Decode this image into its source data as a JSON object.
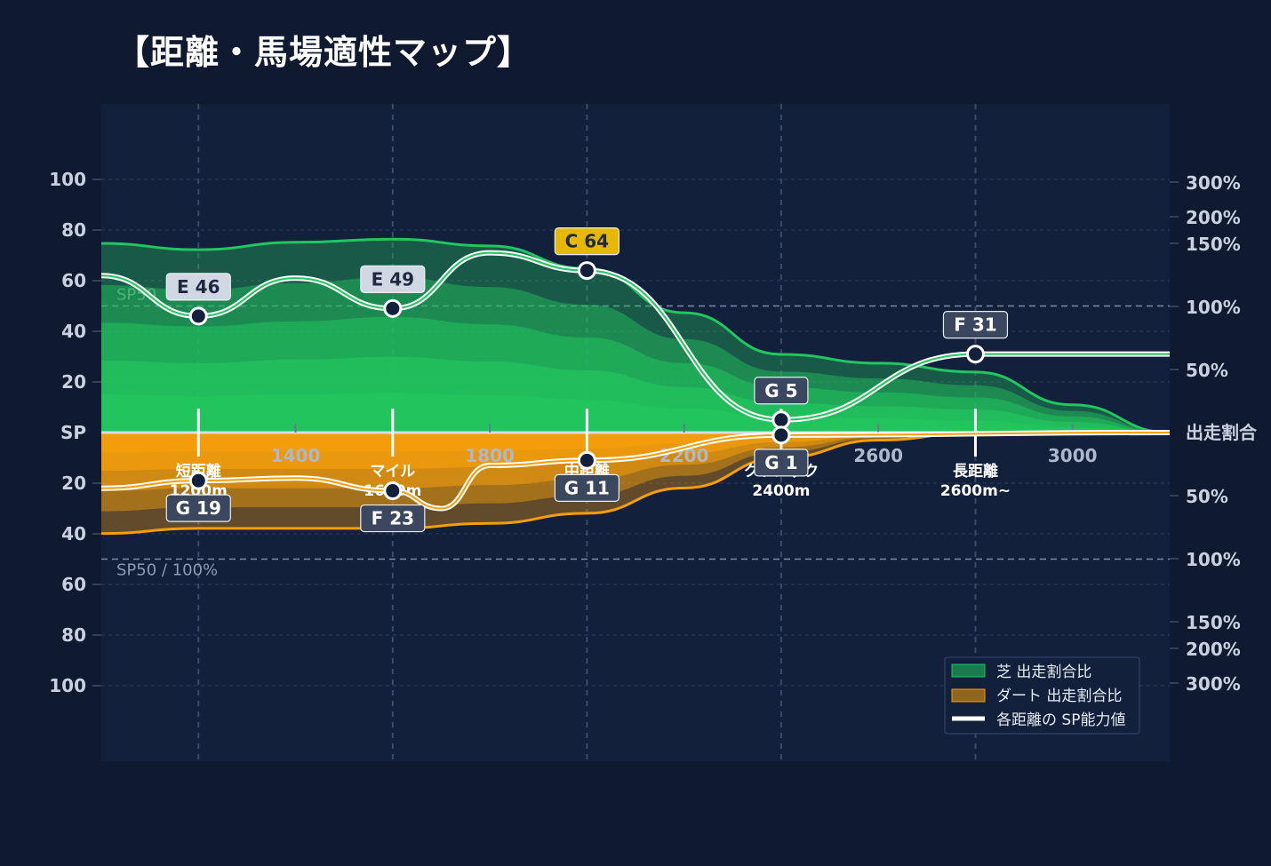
{
  "title": "【距離・馬場適性マップ】",
  "colors": {
    "background": "#0f1930",
    "plot_bg": "#13203b",
    "turf": "#22c55e",
    "dirt": "#f59e0b",
    "grid": "#2e3d5c"
  },
  "chart_data": {
    "type": "area",
    "x_range": [
      1000,
      3200
    ],
    "x_ticks": [
      "1400",
      "1800",
      "2200",
      "2600",
      "3000"
    ],
    "x_tick_values": [
      1400,
      1800,
      2200,
      2600,
      3000
    ],
    "left_axis": {
      "center_label": "SP",
      "labels": [
        "100",
        "80",
        "60",
        "40",
        "20"
      ],
      "values": [
        100,
        80,
        60,
        40,
        20
      ],
      "range": [
        0,
        100
      ]
    },
    "right_axis": {
      "center_label": "出走割合",
      "labels": [
        "300%",
        "200%",
        "150%",
        "100%",
        "50%"
      ],
      "values": [
        300,
        200,
        150,
        100,
        50
      ]
    },
    "reference_line": {
      "value": 50,
      "upper_label": "SP50",
      "lower_label": "SP50 / 100%"
    },
    "distance_categories": [
      {
        "name": "短距離",
        "range": "1200m",
        "x": 1200
      },
      {
        "name": "マイル",
        "range": "1600m",
        "x": 1600
      },
      {
        "name": "中距離",
        "range": "",
        "x": 2000
      },
      {
        "name": "クラシック",
        "range": "2400m",
        "x": 2400
      },
      {
        "name": "長距離",
        "range": "2600m~",
        "x": 2800
      }
    ],
    "series": [
      {
        "name": "芝 出走割合比",
        "side": "upper",
        "x": [
          1000,
          1200,
          1400,
          1600,
          1800,
          2000,
          2200,
          2400,
          2600,
          2800,
          3000,
          3200
        ],
        "values": [
          150,
          145,
          152,
          158,
          148,
          130,
          95,
          62,
          55,
          48,
          22,
          0
        ]
      },
      {
        "name": "ダート 出走割合比",
        "side": "lower",
        "x": [
          1000,
          1200,
          1400,
          1600,
          1800,
          2000,
          2200,
          2400,
          2600,
          2800,
          3000,
          3200
        ],
        "values": [
          80,
          76,
          76,
          76,
          72,
          64,
          44,
          20,
          6,
          0,
          0,
          0
        ]
      },
      {
        "name": "各距離の SP能力値",
        "turf_points": [
          {
            "x": 1000,
            "y": 62
          },
          {
            "x": 1200,
            "y": 46,
            "grade": "E 46"
          },
          {
            "x": 1400,
            "y": 61
          },
          {
            "x": 1600,
            "y": 49,
            "grade": "E 49"
          },
          {
            "x": 1800,
            "y": 71
          },
          {
            "x": 2000,
            "y": 64,
            "grade": "C 64"
          },
          {
            "x": 2400,
            "y": 5,
            "grade": "G 5"
          },
          {
            "x": 2800,
            "y": 31,
            "grade": "F 31"
          },
          {
            "x": 3200,
            "y": 31
          }
        ],
        "dirt_points": [
          {
            "x": 1000,
            "y": 22
          },
          {
            "x": 1200,
            "y": 19,
            "grade": "G 19"
          },
          {
            "x": 1400,
            "y": 18
          },
          {
            "x": 1600,
            "y": 23,
            "grade": "F 23"
          },
          {
            "x": 1700,
            "y": 30
          },
          {
            "x": 1800,
            "y": 13
          },
          {
            "x": 2000,
            "y": 11,
            "grade": "G 11"
          },
          {
            "x": 2400,
            "y": 1,
            "grade": "G 1"
          },
          {
            "x": 3200,
            "y": 0
          }
        ]
      }
    ],
    "badges": [
      {
        "text": "E 46",
        "x": 1200,
        "y": 46,
        "side": "upper",
        "fill": "#cfd8e3",
        "color": "#1f2a40"
      },
      {
        "text": "E 49",
        "x": 1600,
        "y": 49,
        "side": "upper",
        "fill": "#cfd8e3",
        "color": "#1f2a40"
      },
      {
        "text": "C 64",
        "x": 2000,
        "y": 64,
        "side": "upper",
        "fill": "#e6b800",
        "color": "#1f2a40"
      },
      {
        "text": "G 5",
        "x": 2400,
        "y": 5,
        "side": "upper",
        "fill": "#3a475e",
        "color": "#ffffff"
      },
      {
        "text": "F 31",
        "x": 2800,
        "y": 31,
        "side": "upper",
        "fill": "#3a475e",
        "color": "#ffffff"
      },
      {
        "text": "G 19",
        "x": 1200,
        "y": 19,
        "side": "lower",
        "fill": "#3a475e",
        "color": "#ffffff"
      },
      {
        "text": "F 23",
        "x": 1600,
        "y": 23,
        "side": "lower",
        "fill": "#3a475e",
        "color": "#ffffff"
      },
      {
        "text": "G 11",
        "x": 2000,
        "y": 11,
        "side": "lower",
        "fill": "#3a475e",
        "color": "#ffffff"
      },
      {
        "text": "G 1",
        "x": 2400,
        "y": 1,
        "side": "lower",
        "fill": "#3a475e",
        "color": "#ffffff"
      }
    ],
    "legend": {
      "placement": "bottom-right",
      "items": [
        "芝 出走割合比",
        "ダート 出走割合比",
        "各距離の SP能力値"
      ]
    }
  }
}
